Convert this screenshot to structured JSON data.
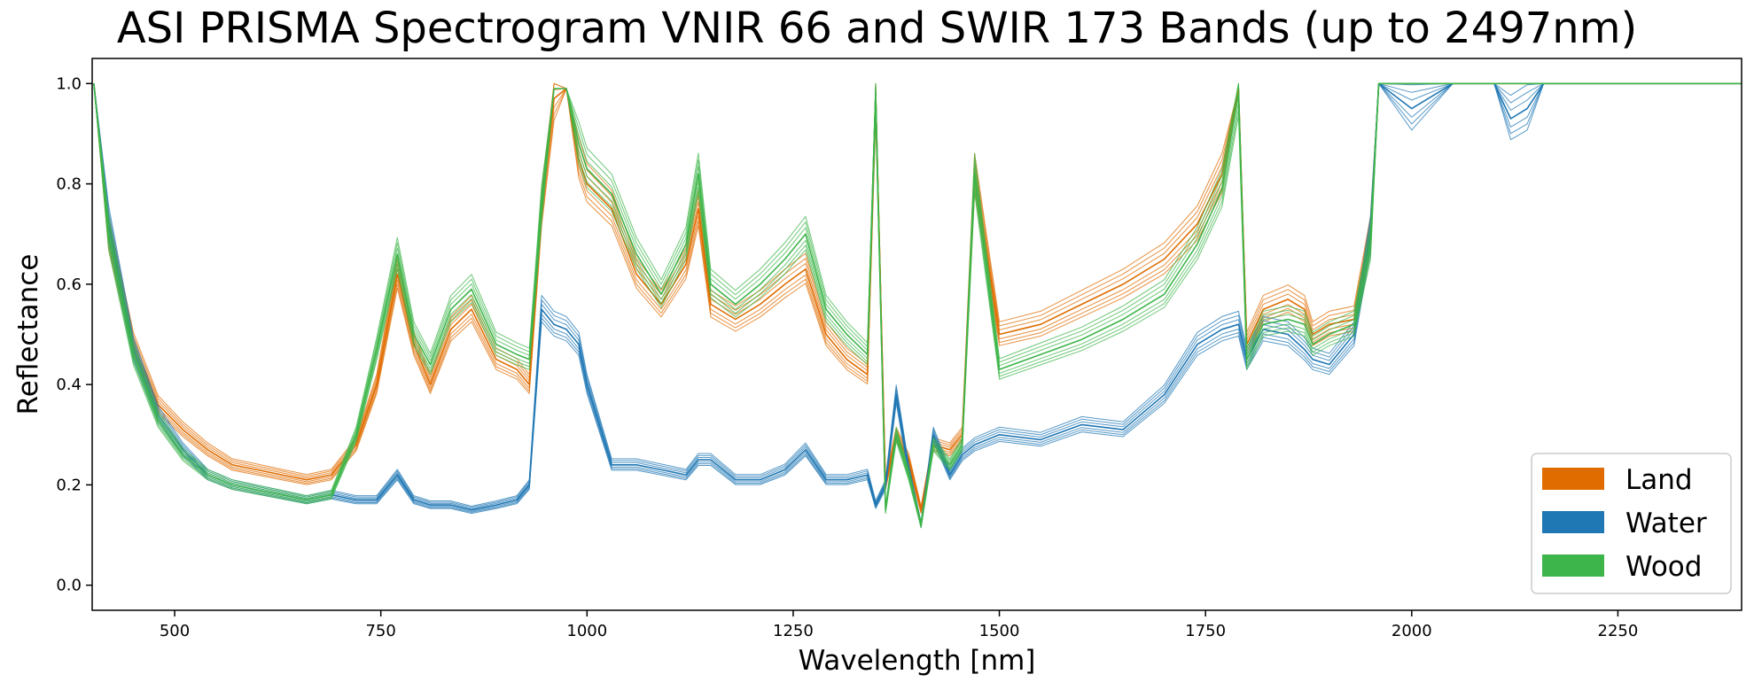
{
  "chart_data": {
    "type": "line",
    "title": "ASI PRISMA Spectrogram VNIR 66 and SWIR 173 Bands (up to 2497nm)",
    "xlabel": "Wavelength [nm]",
    "ylabel": "Reflectance",
    "xlim": [
      400,
      2400
    ],
    "ylim": [
      -0.05,
      1.05
    ],
    "xticks": [
      500,
      750,
      1000,
      1250,
      1500,
      1750,
      2000,
      2250
    ],
    "yticks": [
      0.0,
      0.2,
      0.4,
      0.6,
      0.8,
      1.0
    ],
    "xtick_labels": [
      "500",
      "750",
      "1000",
      "1250",
      "1500",
      "1750",
      "2000",
      "2250"
    ],
    "ytick_labels": [
      "0.0",
      "0.2",
      "0.4",
      "0.6",
      "0.8",
      "1.0"
    ],
    "grid": false,
    "legend_position": "bottom-right",
    "legend": [
      {
        "label": "Land",
        "color": "#e06c00"
      },
      {
        "label": "Water",
        "color": "#1f77b4"
      },
      {
        "label": "Wood",
        "color": "#3db54a"
      }
    ],
    "series": [
      {
        "name": "Land",
        "color": "#e06c00",
        "x": [
          402,
          420,
          450,
          480,
          510,
          540,
          570,
          600,
          630,
          660,
          690,
          720,
          745,
          770,
          790,
          810,
          835,
          860,
          890,
          915,
          930,
          945,
          960,
          975,
          990,
          1000,
          1030,
          1060,
          1090,
          1120,
          1135,
          1150,
          1180,
          1210,
          1240,
          1265,
          1290,
          1315,
          1340,
          1350,
          1362,
          1375,
          1390,
          1405,
          1420,
          1440,
          1455,
          1470,
          1500,
          1550,
          1600,
          1650,
          1700,
          1740,
          1770,
          1790,
          1800,
          1820,
          1850,
          1870,
          1880,
          1900,
          1930,
          1950,
          1960,
          2400
        ],
        "y": [
          1.0,
          0.7,
          0.48,
          0.36,
          0.31,
          0.27,
          0.24,
          0.23,
          0.22,
          0.21,
          0.22,
          0.28,
          0.4,
          0.62,
          0.48,
          0.4,
          0.51,
          0.55,
          0.45,
          0.43,
          0.4,
          0.75,
          0.97,
          0.99,
          0.85,
          0.8,
          0.75,
          0.62,
          0.56,
          0.64,
          0.75,
          0.56,
          0.53,
          0.56,
          0.6,
          0.63,
          0.5,
          0.45,
          0.42,
          0.97,
          0.2,
          0.3,
          0.25,
          0.15,
          0.28,
          0.27,
          0.3,
          0.82,
          0.5,
          0.52,
          0.56,
          0.6,
          0.65,
          0.72,
          0.82,
          0.99,
          0.48,
          0.55,
          0.57,
          0.55,
          0.5,
          0.52,
          0.53,
          0.7,
          1.0,
          1.0
        ]
      },
      {
        "name": "Water",
        "color": "#1f77b4",
        "x": [
          402,
          420,
          450,
          480,
          510,
          540,
          570,
          600,
          630,
          660,
          690,
          720,
          745,
          770,
          790,
          810,
          835,
          860,
          890,
          915,
          930,
          945,
          960,
          975,
          990,
          1000,
          1030,
          1060,
          1090,
          1120,
          1135,
          1150,
          1180,
          1210,
          1240,
          1265,
          1290,
          1315,
          1340,
          1350,
          1362,
          1375,
          1390,
          1405,
          1420,
          1440,
          1455,
          1470,
          1500,
          1550,
          1600,
          1650,
          1700,
          1740,
          1770,
          1790,
          1800,
          1820,
          1850,
          1870,
          1880,
          1900,
          1930,
          1950,
          1960,
          2000,
          2050,
          2100,
          2120,
          2140,
          2160,
          2400
        ],
        "y": [
          1.0,
          0.72,
          0.47,
          0.34,
          0.27,
          0.22,
          0.2,
          0.19,
          0.18,
          0.17,
          0.18,
          0.17,
          0.17,
          0.22,
          0.17,
          0.16,
          0.16,
          0.15,
          0.16,
          0.17,
          0.2,
          0.55,
          0.52,
          0.51,
          0.48,
          0.4,
          0.24,
          0.24,
          0.23,
          0.22,
          0.25,
          0.25,
          0.21,
          0.21,
          0.23,
          0.27,
          0.21,
          0.21,
          0.22,
          0.16,
          0.2,
          0.38,
          0.23,
          0.12,
          0.3,
          0.22,
          0.26,
          0.28,
          0.3,
          0.29,
          0.32,
          0.31,
          0.38,
          0.48,
          0.51,
          0.52,
          0.45,
          0.51,
          0.5,
          0.47,
          0.45,
          0.44,
          0.5,
          0.7,
          1.0,
          0.95,
          1.0,
          1.0,
          0.93,
          0.95,
          1.0,
          1.0
        ]
      },
      {
        "name": "Wood",
        "color": "#3db54a",
        "x": [
          402,
          420,
          450,
          480,
          510,
          540,
          570,
          600,
          630,
          660,
          690,
          720,
          745,
          770,
          790,
          810,
          835,
          860,
          890,
          915,
          930,
          945,
          960,
          975,
          990,
          1000,
          1030,
          1060,
          1090,
          1120,
          1135,
          1150,
          1180,
          1210,
          1240,
          1265,
          1290,
          1315,
          1340,
          1350,
          1362,
          1375,
          1390,
          1405,
          1420,
          1440,
          1455,
          1470,
          1500,
          1550,
          1600,
          1650,
          1700,
          1740,
          1770,
          1790,
          1800,
          1820,
          1850,
          1870,
          1880,
          1900,
          1930,
          1950,
          1960,
          2400
        ],
        "y": [
          1.0,
          0.7,
          0.46,
          0.33,
          0.26,
          0.22,
          0.2,
          0.19,
          0.18,
          0.17,
          0.18,
          0.3,
          0.47,
          0.66,
          0.5,
          0.44,
          0.55,
          0.59,
          0.48,
          0.46,
          0.45,
          0.76,
          0.99,
          0.99,
          0.88,
          0.83,
          0.78,
          0.66,
          0.58,
          0.68,
          0.82,
          0.6,
          0.56,
          0.6,
          0.65,
          0.7,
          0.55,
          0.5,
          0.46,
          0.98,
          0.15,
          0.3,
          0.22,
          0.12,
          0.28,
          0.24,
          0.28,
          0.82,
          0.43,
          0.46,
          0.49,
          0.53,
          0.58,
          0.68,
          0.79,
          0.98,
          0.45,
          0.52,
          0.53,
          0.52,
          0.48,
          0.5,
          0.52,
          0.68,
          1.0,
          1.0
        ]
      }
    ]
  }
}
